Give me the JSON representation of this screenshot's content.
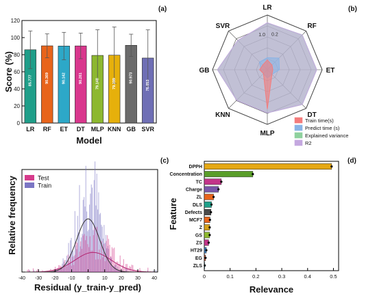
{
  "panel_labels": {
    "a": "(a)",
    "b": "(b)",
    "c": "(c)",
    "d": "(d)"
  },
  "chart_data": [
    {
      "panel": "a",
      "type": "bar",
      "xlabel": "Model",
      "ylabel": "Score (%)",
      "ylim": [
        0,
        120
      ],
      "yticks": [
        0,
        20,
        40,
        60,
        80,
        100,
        120
      ],
      "categories": [
        "LR",
        "RF",
        "ET",
        "DT",
        "MLP",
        "KNN",
        "GB",
        "SVR"
      ],
      "values": [
        85.777,
        90.369,
        90.142,
        90.261,
        79.148,
        79.399,
        90.973,
        76.053
      ],
      "value_labels": [
        "85.777",
        "90.369",
        "90.142",
        "90.261",
        "79.148",
        "79.399",
        "90.973",
        "76.053"
      ],
      "errors": [
        22,
        14,
        16,
        15,
        30,
        33,
        13,
        33
      ],
      "colors": [
        "#1f9e89",
        "#e8641b",
        "#2da8c8",
        "#d9378d",
        "#8db82f",
        "#e6b00b",
        "#6b6b6b",
        "#6f6fb5"
      ]
    },
    {
      "panel": "b",
      "type": "radar",
      "axes": [
        "LR",
        "RF",
        "ET",
        "DT",
        "MLP",
        "KNN",
        "GB",
        "SVR"
      ],
      "rlim": [
        0,
        1.0
      ],
      "ring_labels": [
        "0.2",
        "1.0"
      ],
      "legend_position": "bottom-right",
      "series": [
        {
          "name": "Train time(s)",
          "color": "#f47c7c",
          "values": [
            0.18,
            0.12,
            0.1,
            0.12,
            0.72,
            0.1,
            0.14,
            0.12
          ]
        },
        {
          "name": "Predict time (s)",
          "color": "#8ab4e6",
          "values": [
            0.22,
            0.3,
            0.22,
            0.12,
            0.15,
            0.1,
            0.12,
            0.2
          ]
        },
        {
          "name": "Explained variance",
          "color": "#8fd19e",
          "values": [
            0.85,
            0.9,
            0.9,
            0.9,
            0.79,
            0.79,
            0.91,
            0.76
          ]
        },
        {
          "name": "R2",
          "color": "#c4a8e0",
          "values": [
            0.86,
            0.9,
            0.9,
            0.9,
            0.79,
            0.79,
            0.91,
            0.76
          ]
        }
      ]
    },
    {
      "panel": "c",
      "type": "histogram",
      "xlabel": "Residual (y_train-y_pred)",
      "ylabel": "Relative frequency",
      "xlim": [
        -40,
        42
      ],
      "xticks": [
        -40,
        -30,
        -20,
        -10,
        0,
        10,
        20,
        30,
        40
      ],
      "legend_position": "top-left",
      "series": [
        {
          "name": "Test",
          "color": "#d63c8c",
          "mean": 3,
          "sd": 11,
          "peak": 0.35
        },
        {
          "name": "Train",
          "color": "#7b76c4",
          "mean": 0,
          "sd": 7,
          "peak": 0.95
        }
      ]
    },
    {
      "panel": "d",
      "type": "bar",
      "orientation": "horizontal",
      "xlabel": "Relevance",
      "ylabel": "Feature",
      "xlim": [
        0,
        0.52
      ],
      "xticks": [
        0,
        0.1,
        0.2,
        0.3,
        0.4,
        0.5
      ],
      "xtick_labels": [
        "0",
        "0.1",
        "0.2",
        "0.3",
        "0.4",
        "0.5"
      ],
      "categories": [
        "DPPH",
        "Concentration",
        "TC",
        "Charge",
        "ZL",
        "DLS",
        "Defects",
        "MCF7",
        "Z",
        "GS",
        "ZS",
        "HT29",
        "EG",
        "ZLS"
      ],
      "values": [
        0.493,
        0.188,
        0.066,
        0.055,
        0.036,
        0.028,
        0.026,
        0.022,
        0.021,
        0.021,
        0.017,
        0.008,
        0.005,
        0.002
      ],
      "errors": [
        0.004,
        0.003,
        0.004,
        0.003,
        0.003,
        0.003,
        0.002,
        0.003,
        0.002,
        0.002,
        0.002,
        0.002,
        0.002,
        0.002
      ],
      "colors": [
        "#e5a814",
        "#5a9e2a",
        "#c23589",
        "#7857a8",
        "#e8641b",
        "#1fa08a",
        "#4a4a4a",
        "#e8641b",
        "#d4a017",
        "#8db82f",
        "#c23589",
        "#3f7fbf",
        "#c9502a",
        "#3aa0c0"
      ]
    }
  ]
}
